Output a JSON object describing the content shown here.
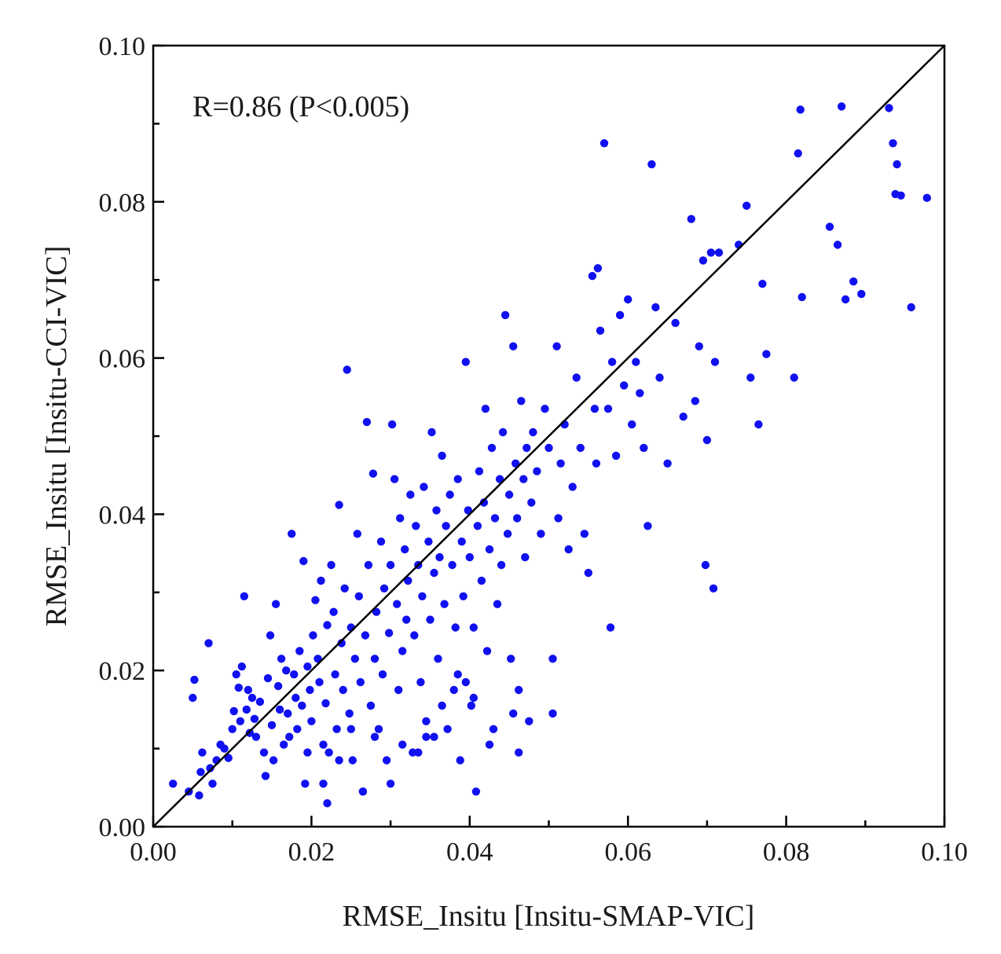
{
  "chart_data": {
    "type": "scatter",
    "title": "",
    "xlabel": "RMSE_Insitu [Insitu-SMAP-VIC]",
    "ylabel": "RMSE_Insitu [Insitu-CCI-VIC]",
    "xlim": [
      0.0,
      0.1
    ],
    "ylim": [
      0.0,
      0.1
    ],
    "x_ticks": [
      "0.00",
      "0.02",
      "0.04",
      "0.06",
      "0.08",
      "0.10"
    ],
    "y_ticks": [
      "0.00",
      "0.02",
      "0.04",
      "0.06",
      "0.08",
      "0.10"
    ],
    "annotation": "R=0.86 (P<0.005)",
    "grid": false,
    "marker_color": "#1010f0",
    "reference_line": {
      "type": "1:1",
      "color": "#000000"
    },
    "series": [
      {
        "points": [
          [
            0.0025,
            0.0055
          ],
          [
            0.0045,
            0.0045
          ],
          [
            0.005,
            0.0165
          ],
          [
            0.0052,
            0.0188
          ],
          [
            0.0058,
            0.004
          ],
          [
            0.006,
            0.007
          ],
          [
            0.0062,
            0.0095
          ],
          [
            0.007,
            0.0235
          ],
          [
            0.0072,
            0.0075
          ],
          [
            0.0075,
            0.0055
          ],
          [
            0.008,
            0.0085
          ],
          [
            0.0085,
            0.0105
          ],
          [
            0.009,
            0.01
          ],
          [
            0.0095,
            0.0088
          ],
          [
            0.01,
            0.0125
          ],
          [
            0.0102,
            0.0148
          ],
          [
            0.0105,
            0.0195
          ],
          [
            0.0108,
            0.0178
          ],
          [
            0.011,
            0.0135
          ],
          [
            0.0112,
            0.0205
          ],
          [
            0.0115,
            0.0295
          ],
          [
            0.0118,
            0.015
          ],
          [
            0.012,
            0.0175
          ],
          [
            0.0122,
            0.012
          ],
          [
            0.0125,
            0.0165
          ],
          [
            0.0128,
            0.0138
          ],
          [
            0.013,
            0.0115
          ],
          [
            0.0135,
            0.016
          ],
          [
            0.014,
            0.0095
          ],
          [
            0.0142,
            0.0065
          ],
          [
            0.0145,
            0.019
          ],
          [
            0.0148,
            0.0245
          ],
          [
            0.015,
            0.013
          ],
          [
            0.0152,
            0.0085
          ],
          [
            0.0155,
            0.0285
          ],
          [
            0.0158,
            0.018
          ],
          [
            0.016,
            0.015
          ],
          [
            0.0162,
            0.0215
          ],
          [
            0.0165,
            0.0105
          ],
          [
            0.0168,
            0.02
          ],
          [
            0.017,
            0.0145
          ],
          [
            0.0172,
            0.0115
          ],
          [
            0.0175,
            0.0375
          ],
          [
            0.0178,
            0.0195
          ],
          [
            0.018,
            0.0165
          ],
          [
            0.0182,
            0.0125
          ],
          [
            0.0185,
            0.0225
          ],
          [
            0.0188,
            0.0155
          ],
          [
            0.019,
            0.034
          ],
          [
            0.0192,
            0.0055
          ],
          [
            0.0195,
            0.0205
          ],
          [
            0.0198,
            0.0175
          ],
          [
            0.02,
            0.0135
          ],
          [
            0.0202,
            0.0245
          ],
          [
            0.0205,
            0.029
          ],
          [
            0.0208,
            0.0215
          ],
          [
            0.021,
            0.0185
          ],
          [
            0.0212,
            0.0315
          ],
          [
            0.0215,
            0.0105
          ],
          [
            0.0218,
            0.0158
          ],
          [
            0.022,
            0.0258
          ],
          [
            0.0222,
            0.0095
          ],
          [
            0.0225,
            0.0335
          ],
          [
            0.0228,
            0.0275
          ],
          [
            0.023,
            0.0195
          ],
          [
            0.0232,
            0.0125
          ],
          [
            0.0235,
            0.0412
          ],
          [
            0.0238,
            0.0235
          ],
          [
            0.024,
            0.0175
          ],
          [
            0.0242,
            0.0305
          ],
          [
            0.0245,
            0.0585
          ],
          [
            0.0248,
            0.0145
          ],
          [
            0.025,
            0.0255
          ],
          [
            0.0252,
            0.0085
          ],
          [
            0.0255,
            0.0215
          ],
          [
            0.0258,
            0.0375
          ],
          [
            0.026,
            0.0295
          ],
          [
            0.0262,
            0.0185
          ],
          [
            0.0265,
            0.0045
          ],
          [
            0.0268,
            0.0245
          ],
          [
            0.027,
            0.0518
          ],
          [
            0.0272,
            0.0335
          ],
          [
            0.0275,
            0.0155
          ],
          [
            0.0278,
            0.0452
          ],
          [
            0.028,
            0.0215
          ],
          [
            0.0282,
            0.0275
          ],
          [
            0.0285,
            0.0125
          ],
          [
            0.0288,
            0.0365
          ],
          [
            0.029,
            0.0195
          ],
          [
            0.0292,
            0.0305
          ],
          [
            0.0295,
            0.0085
          ],
          [
            0.0298,
            0.0248
          ],
          [
            0.03,
            0.0335
          ],
          [
            0.0302,
            0.0515
          ],
          [
            0.0305,
            0.0445
          ],
          [
            0.0308,
            0.0285
          ],
          [
            0.031,
            0.0175
          ],
          [
            0.0312,
            0.0395
          ],
          [
            0.0315,
            0.0225
          ],
          [
            0.0318,
            0.0355
          ],
          [
            0.032,
            0.0265
          ],
          [
            0.0322,
            0.0315
          ],
          [
            0.0325,
            0.0425
          ],
          [
            0.0328,
            0.0095
          ],
          [
            0.033,
            0.0245
          ],
          [
            0.0332,
            0.0385
          ],
          [
            0.0335,
            0.0335
          ],
          [
            0.0338,
            0.0185
          ],
          [
            0.034,
            0.0295
          ],
          [
            0.0342,
            0.0435
          ],
          [
            0.0345,
            0.0115
          ],
          [
            0.0348,
            0.0365
          ],
          [
            0.035,
            0.0265
          ],
          [
            0.0352,
            0.0505
          ],
          [
            0.0355,
            0.0325
          ],
          [
            0.0358,
            0.0405
          ],
          [
            0.036,
            0.0215
          ],
          [
            0.0362,
            0.0345
          ],
          [
            0.0365,
            0.0475
          ],
          [
            0.0368,
            0.0285
          ],
          [
            0.037,
            0.0385
          ],
          [
            0.0372,
            0.0125
          ],
          [
            0.0375,
            0.0425
          ],
          [
            0.0378,
            0.0335
          ],
          [
            0.038,
            0.0175
          ],
          [
            0.0382,
            0.0255
          ],
          [
            0.0385,
            0.0445
          ],
          [
            0.0388,
            0.0085
          ],
          [
            0.039,
            0.0365
          ],
          [
            0.0392,
            0.0295
          ],
          [
            0.0395,
            0.0595
          ],
          [
            0.0398,
            0.0405
          ],
          [
            0.04,
            0.0345
          ],
          [
            0.0402,
            0.0155
          ],
          [
            0.0405,
            0.0255
          ],
          [
            0.0408,
            0.0045
          ],
          [
            0.041,
            0.0385
          ],
          [
            0.0412,
            0.0455
          ],
          [
            0.0415,
            0.0315
          ],
          [
            0.0418,
            0.0415
          ],
          [
            0.042,
            0.0535
          ],
          [
            0.0422,
            0.0225
          ],
          [
            0.0425,
            0.0355
          ],
          [
            0.0428,
            0.0485
          ],
          [
            0.043,
            0.0125
          ],
          [
            0.0432,
            0.0395
          ],
          [
            0.0435,
            0.0285
          ],
          [
            0.0438,
            0.0445
          ],
          [
            0.044,
            0.0335
          ],
          [
            0.0442,
            0.0505
          ],
          [
            0.0445,
            0.0655
          ],
          [
            0.0448,
            0.0375
          ],
          [
            0.045,
            0.0425
          ],
          [
            0.0452,
            0.0215
          ],
          [
            0.0455,
            0.0615
          ],
          [
            0.0458,
            0.0465
          ],
          [
            0.046,
            0.0395
          ],
          [
            0.0462,
            0.0095
          ],
          [
            0.0465,
            0.0545
          ],
          [
            0.0468,
            0.0445
          ],
          [
            0.047,
            0.0345
          ],
          [
            0.0472,
            0.0485
          ],
          [
            0.0475,
            0.0135
          ],
          [
            0.0478,
            0.0415
          ],
          [
            0.048,
            0.0505
          ],
          [
            0.0485,
            0.0455
          ],
          [
            0.049,
            0.0375
          ],
          [
            0.0495,
            0.0535
          ],
          [
            0.05,
            0.0485
          ],
          [
            0.0505,
            0.0145
          ],
          [
            0.051,
            0.0615
          ],
          [
            0.0512,
            0.0395
          ],
          [
            0.0515,
            0.0465
          ],
          [
            0.052,
            0.0515
          ],
          [
            0.0525,
            0.0355
          ],
          [
            0.053,
            0.0435
          ],
          [
            0.0535,
            0.0575
          ],
          [
            0.054,
            0.0485
          ],
          [
            0.0545,
            0.0375
          ],
          [
            0.055,
            0.0325
          ],
          [
            0.0555,
            0.0705
          ],
          [
            0.0558,
            0.0535
          ],
          [
            0.056,
            0.0465
          ],
          [
            0.0562,
            0.0715
          ],
          [
            0.0565,
            0.0635
          ],
          [
            0.057,
            0.0875
          ],
          [
            0.0575,
            0.0535
          ],
          [
            0.0578,
            0.0255
          ],
          [
            0.058,
            0.0595
          ],
          [
            0.0585,
            0.0475
          ],
          [
            0.059,
            0.0655
          ],
          [
            0.0595,
            0.0565
          ],
          [
            0.06,
            0.0675
          ],
          [
            0.0605,
            0.0515
          ],
          [
            0.061,
            0.0595
          ],
          [
            0.0615,
            0.0555
          ],
          [
            0.062,
            0.0485
          ],
          [
            0.0625,
            0.0385
          ],
          [
            0.063,
            0.0848
          ],
          [
            0.0635,
            0.0665
          ],
          [
            0.064,
            0.0575
          ],
          [
            0.065,
            0.0465
          ],
          [
            0.066,
            0.0645
          ],
          [
            0.067,
            0.0525
          ],
          [
            0.068,
            0.0778
          ],
          [
            0.0685,
            0.0545
          ],
          [
            0.069,
            0.0615
          ],
          [
            0.0695,
            0.0725
          ],
          [
            0.0698,
            0.0335
          ],
          [
            0.07,
            0.0495
          ],
          [
            0.0705,
            0.0735
          ],
          [
            0.0708,
            0.0305
          ],
          [
            0.071,
            0.0595
          ],
          [
            0.0715,
            0.0735
          ],
          [
            0.074,
            0.0745
          ],
          [
            0.075,
            0.0795
          ],
          [
            0.0755,
            0.0575
          ],
          [
            0.0765,
            0.0515
          ],
          [
            0.077,
            0.0695
          ],
          [
            0.0775,
            0.0605
          ],
          [
            0.081,
            0.0575
          ],
          [
            0.0815,
            0.0862
          ],
          [
            0.0818,
            0.0918
          ],
          [
            0.082,
            0.0678
          ],
          [
            0.0855,
            0.0768
          ],
          [
            0.0865,
            0.0745
          ],
          [
            0.087,
            0.0922
          ],
          [
            0.0875,
            0.0675
          ],
          [
            0.0885,
            0.0698
          ],
          [
            0.0895,
            0.0682
          ],
          [
            0.093,
            0.092
          ],
          [
            0.0935,
            0.0875
          ],
          [
            0.0938,
            0.081
          ],
          [
            0.094,
            0.0848
          ],
          [
            0.0945,
            0.0808
          ],
          [
            0.0958,
            0.0665
          ],
          [
            0.0978,
            0.0805
          ],
          [
            0.022,
            0.003
          ],
          [
            0.0265,
            0.0045
          ],
          [
            0.03,
            0.0055
          ],
          [
            0.0215,
            0.0055
          ],
          [
            0.0195,
            0.0095
          ],
          [
            0.0235,
            0.0085
          ],
          [
            0.025,
            0.0125
          ],
          [
            0.028,
            0.0115
          ],
          [
            0.0315,
            0.0105
          ],
          [
            0.0335,
            0.0095
          ],
          [
            0.0345,
            0.0135
          ],
          [
            0.0355,
            0.0115
          ],
          [
            0.0425,
            0.0105
          ],
          [
            0.0455,
            0.0145
          ],
          [
            0.0462,
            0.0175
          ],
          [
            0.0505,
            0.0215
          ],
          [
            0.0385,
            0.0195
          ],
          [
            0.0395,
            0.0185
          ],
          [
            0.0405,
            0.0165
          ],
          [
            0.0365,
            0.0155
          ]
        ]
      }
    ]
  }
}
